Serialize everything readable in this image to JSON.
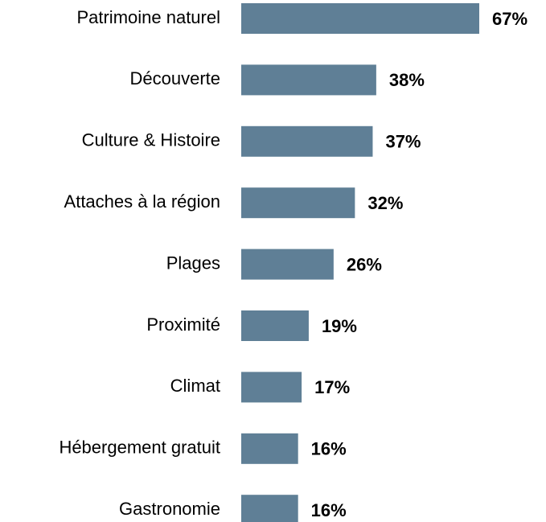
{
  "chart_data": {
    "type": "bar",
    "orientation": "horizontal",
    "categories": [
      "Patrimoine naturel",
      "Découverte",
      "Culture & Histoire",
      "Attaches à la région",
      "Plages",
      "Proximité",
      "Climat",
      "Hébergement gratuit",
      "Gastronomie"
    ],
    "values": [
      67,
      38,
      37,
      32,
      26,
      19,
      17,
      16,
      16
    ],
    "value_labels": [
      "67%",
      "38%",
      "37%",
      "32%",
      "26%",
      "19%",
      "17%",
      "16%",
      "16%"
    ],
    "color": "#5f7f96"
  }
}
